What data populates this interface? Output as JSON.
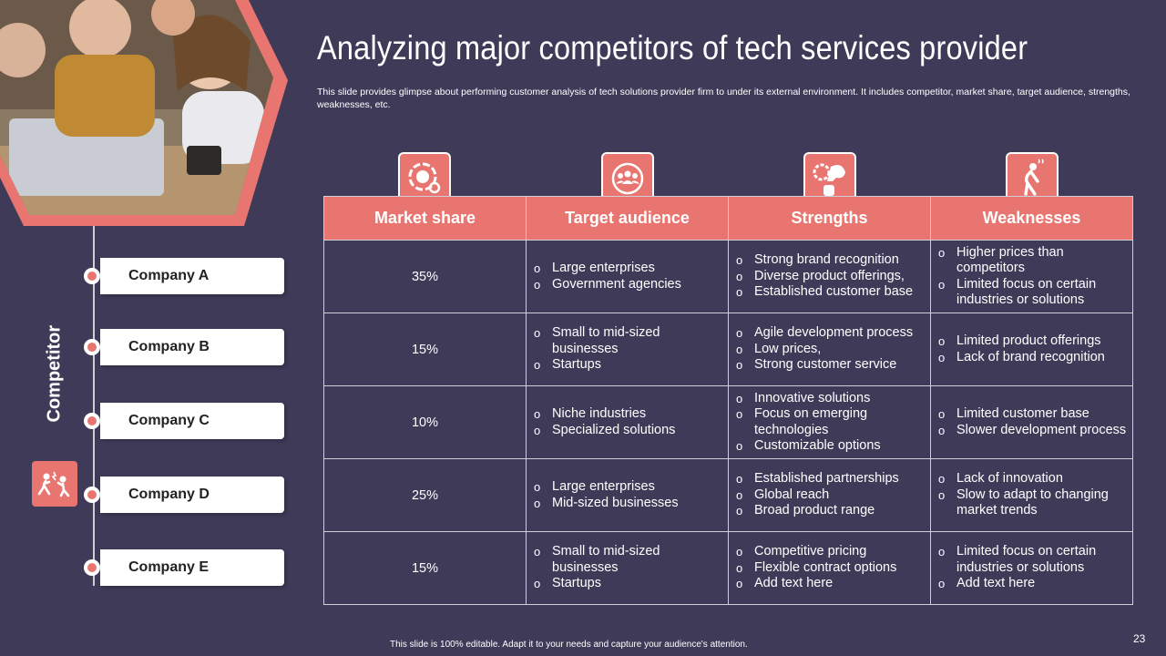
{
  "title": "Analyzing major competitors of tech services provider",
  "subtitle": "This slide provides glimpse about performing customer analysis of tech solutions provider firm to under its external environment. It includes competitor, market share, target audience, strengths, weaknesses, etc.",
  "sidebar": {
    "label": "Competitor",
    "companies": [
      "Company A",
      "Company B",
      "Company C",
      "Company D",
      "Company E"
    ]
  },
  "table": {
    "headers": [
      "Market share",
      "Target audience",
      "Strengths",
      "Weaknesses"
    ],
    "header_icons": [
      "pie-chart-icon",
      "audience-group-icon",
      "strength-arm-icon",
      "tired-person-icon"
    ],
    "rows": [
      {
        "share": "35%",
        "audience": [
          "Large enterprises",
          "Government agencies"
        ],
        "strengths": [
          "Strong brand recognition",
          "Diverse product offerings,",
          "Established customer base"
        ],
        "weaknesses": [
          "Higher prices than competitors",
          "Limited focus on certain industries or solutions"
        ]
      },
      {
        "share": "15%",
        "audience": [
          "Small to mid-sized businesses",
          "Startups"
        ],
        "strengths": [
          "Agile development process",
          "Low prices,",
          "Strong customer service"
        ],
        "weaknesses": [
          "Limited product offerings",
          "Lack of brand recognition"
        ]
      },
      {
        "share": "10%",
        "audience": [
          "Niche industries",
          "Specialized solutions"
        ],
        "strengths": [
          "Innovative  solutions",
          "Focus on emerging technologies",
          "Customizable options"
        ],
        "weaknesses": [
          "Limited customer base",
          "Slower development process"
        ]
      },
      {
        "share": "25%",
        "audience": [
          "Large enterprises",
          "Mid-sized businesses"
        ],
        "strengths": [
          "Established partnerships",
          "Global reach",
          "Broad product range"
        ],
        "weaknesses": [
          "Lack of innovation",
          "Slow to adapt to changing market trends"
        ]
      },
      {
        "share": "15%",
        "audience": [
          "Small to mid-sized businesses",
          "Startups"
        ],
        "strengths": [
          "Competitive pricing",
          "Flexible contract options",
          "Add text here"
        ],
        "weaknesses": [
          "Limited focus on certain industries or solutions",
          "Add text here"
        ]
      }
    ]
  },
  "footer": "This slide is 100% editable.  Adapt it to your needs and capture your audience's attention.",
  "page_number": "23",
  "colors": {
    "background": "#403a59",
    "accent": "#e8756f",
    "border": "#cfcfd8"
  }
}
